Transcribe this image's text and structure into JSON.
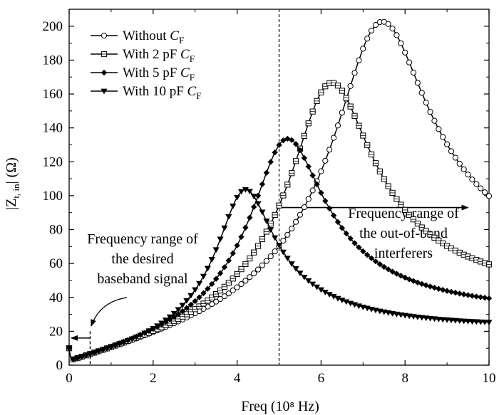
{
  "chart_data": {
    "type": "line",
    "title": "",
    "xlabel": "Freq (10⁸ Hz)",
    "ylabel": "|Zt, in| (Ω)",
    "xlim": [
      0,
      10
    ],
    "ylim": [
      0,
      210
    ],
    "xticks": [
      0,
      2,
      4,
      6,
      8,
      10
    ],
    "yticks": [
      0,
      20,
      40,
      60,
      80,
      100,
      120,
      140,
      160,
      180,
      200
    ],
    "grid": false,
    "legend_position": "top-left",
    "series": [
      {
        "name": "Without CF",
        "label_main": "Without ",
        "label_italic": "C",
        "label_sub": "F",
        "marker": "circle",
        "color": "#000000",
        "f0": 7.45,
        "peak": 200,
        "q": 3.4,
        "tail": 8.8
      },
      {
        "name": "With 2 pF CF",
        "label_main": "With 2 pF ",
        "label_italic": "C",
        "label_sub": "F",
        "marker": "square",
        "color": "#000000",
        "f0": 6.25,
        "peak": 164,
        "q": 3.3,
        "tail": 8.2
      },
      {
        "name": "With 5 pF CF",
        "label_main": "With 5 pF ",
        "label_italic": "C",
        "label_sub": "F",
        "marker": "diamond",
        "color": "#000000",
        "f0": 5.2,
        "peak": 131,
        "q": 3.1,
        "tail": 7.5
      },
      {
        "name": "With 10 pF CF",
        "label_main": "With 10 pF ",
        "label_italic": "C",
        "label_sub": "F",
        "marker": "triangle-down",
        "color": "#000000",
        "f0": 4.2,
        "peak": 101,
        "q": 3.2,
        "tail": 6.8
      }
    ],
    "annotations": {
      "left_lines": [
        "Frequency range of",
        "the desired",
        "baseband signal"
      ],
      "right_lines": [
        "Frequency range of",
        "the out-of-band",
        "interferers"
      ],
      "divider_x": 5.0,
      "baseband_x": 0.5,
      "right_arrow_y": 93,
      "left_arrow_y": 16
    }
  }
}
